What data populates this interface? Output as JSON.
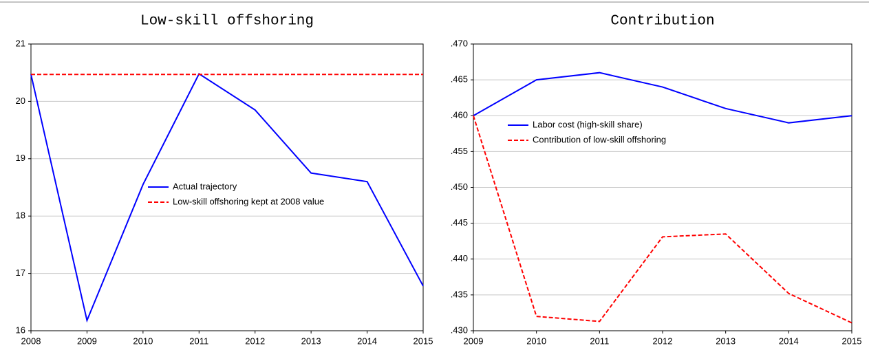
{
  "chart_data": [
    {
      "type": "line",
      "title": "Low-skill offshoring",
      "x": [
        2008,
        2009,
        2010,
        2011,
        2012,
        2013,
        2014,
        2015
      ],
      "xlim": [
        2008,
        2015
      ],
      "xticks": [
        2008,
        2009,
        2010,
        2011,
        2012,
        2013,
        2014,
        2015
      ],
      "ylim": [
        16,
        21
      ],
      "yticks": [
        16,
        17,
        18,
        19,
        20,
        21
      ],
      "grid": true,
      "legend": "center",
      "series": [
        {
          "name": "Actual trajectory",
          "color": "#0000ff",
          "style": "solid",
          "values": [
            20.47,
            16.18,
            18.55,
            20.48,
            19.85,
            18.75,
            18.6,
            16.78
          ]
        },
        {
          "name": "Low-skill offshoring kept at 2008 value",
          "color": "#ff0000",
          "style": "dashed",
          "values": [
            20.47,
            20.47,
            20.47,
            20.47,
            20.47,
            20.47,
            20.47,
            20.47
          ]
        }
      ]
    },
    {
      "type": "line",
      "title": "Contribution",
      "x": [
        2009,
        2010,
        2011,
        2012,
        2013,
        2014,
        2015
      ],
      "xlim": [
        2009,
        2015
      ],
      "xticks": [
        2009,
        2010,
        2011,
        2012,
        2013,
        2014,
        2015
      ],
      "ylim": [
        0.43,
        0.47
      ],
      "yticks": [
        {
          "value": 0.43,
          "label": ".430"
        },
        {
          "value": 0.435,
          "label": ".435"
        },
        {
          "value": 0.44,
          "label": ".440"
        },
        {
          "value": 0.445,
          "label": ".445"
        },
        {
          "value": 0.45,
          "label": ".450"
        },
        {
          "value": 0.455,
          "label": ".455"
        },
        {
          "value": 0.46,
          "label": ".460"
        },
        {
          "value": 0.465,
          "label": ".465"
        },
        {
          "value": 0.47,
          "label": ".470"
        }
      ],
      "grid": true,
      "legend": "upper left",
      "series": [
        {
          "name": "Labor cost (high-skill share)",
          "color": "#0000ff",
          "style": "solid",
          "values": [
            0.46,
            0.465,
            0.466,
            0.464,
            0.461,
            0.459,
            0.46
          ]
        },
        {
          "name": "Contribution of low-skill offshoring",
          "color": "#ff0000",
          "style": "dashed",
          "values": [
            0.46,
            0.432,
            0.4313,
            0.4431,
            0.4435,
            0.4352,
            0.4311
          ]
        }
      ]
    }
  ]
}
